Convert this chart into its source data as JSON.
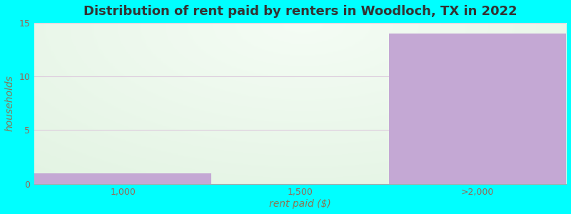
{
  "title": "Distribution of rent paid by renters in Woodloch, TX in 2022",
  "xlabel": "rent paid ($)",
  "ylabel": "households",
  "categories": [
    "1,000",
    "1,500",
    ">2,000"
  ],
  "values": [
    1,
    0,
    14
  ],
  "bar_color": "#c4a8d4",
  "background_color": "#00ffff",
  "plot_bg_color_center": "#e8f5e8",
  "plot_bg_color_edge": "#d0eed8",
  "ylim": [
    0,
    15
  ],
  "yticks": [
    0,
    5,
    10,
    15
  ],
  "title_fontsize": 13,
  "axis_label_fontsize": 10,
  "tick_fontsize": 9,
  "grid_color": "#ddccdd",
  "title_color": "#333333",
  "tick_color": "#996655",
  "label_color": "#887755"
}
